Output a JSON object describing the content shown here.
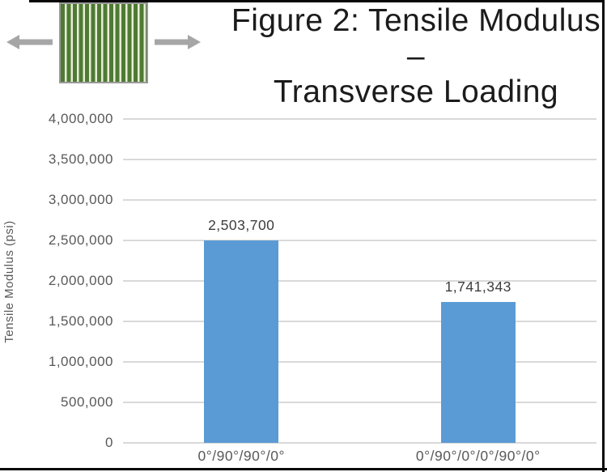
{
  "figure": {
    "title_line1": "Figure 2: Tensile Modulus –",
    "title_line2": "Transverse Loading",
    "icon": {
      "name": "transverse-loading-laminate-icon",
      "stripe_green": "#4E7A33",
      "stripe_light": "#E7EDD6",
      "arrow_color": "#A6A6A6"
    }
  },
  "chart_data": {
    "type": "bar",
    "title": "Figure 2: Tensile Modulus – Transverse Loading",
    "categories": [
      "0°/90°/90°/0°",
      "0°/90°/0°/0°/90°/0°"
    ],
    "values": [
      2503700,
      1741343
    ],
    "value_labels": [
      "2,503,700",
      "1,741,343"
    ],
    "xlabel": "",
    "ylabel": "Tensile Modulus (psi)",
    "ylim": [
      0,
      4000000
    ],
    "ytick_step": 500000,
    "ytick_labels": [
      "0",
      "500,000",
      "1,000,000",
      "1,500,000",
      "2,000,000",
      "2,500,000",
      "3,000,000",
      "3,500,000",
      "4,000,000"
    ],
    "grid": true,
    "legend": false,
    "colors": {
      "bar": "#5B9BD5",
      "gridline": "#D9D9D9",
      "axis_text": "#595959",
      "value_label_text": "#3D3D3D",
      "title_text": "#1B1B1B"
    }
  }
}
